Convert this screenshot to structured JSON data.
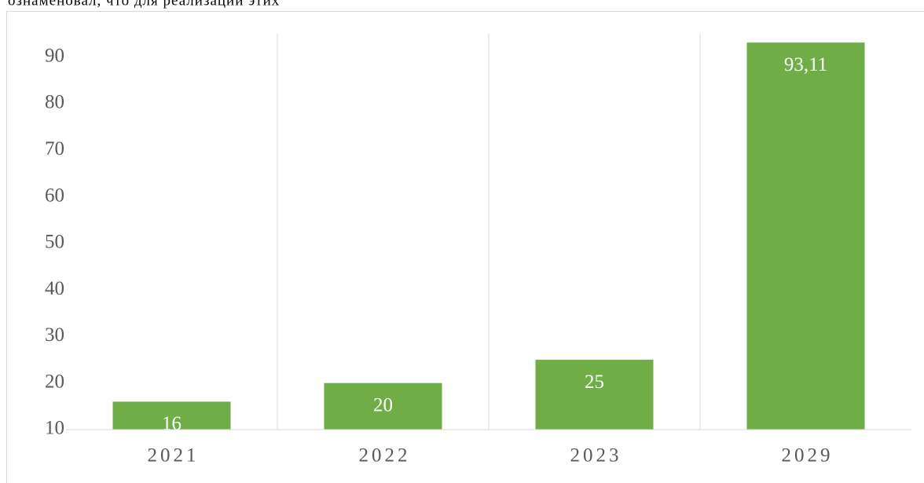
{
  "caption": "ознаменовал,  что  для  реализации  этих",
  "chart_data": {
    "type": "bar",
    "categories": [
      "2021",
      "2022",
      "2023",
      "2029"
    ],
    "values": [
      16,
      20,
      25,
      93.11
    ],
    "value_labels": [
      "16",
      "20",
      "25",
      "93,11"
    ],
    "color": "#70ad47",
    "ylim": [
      10,
      95
    ],
    "yticks": [
      10,
      20,
      30,
      40,
      50,
      60,
      70,
      80,
      90
    ],
    "grid": false
  }
}
